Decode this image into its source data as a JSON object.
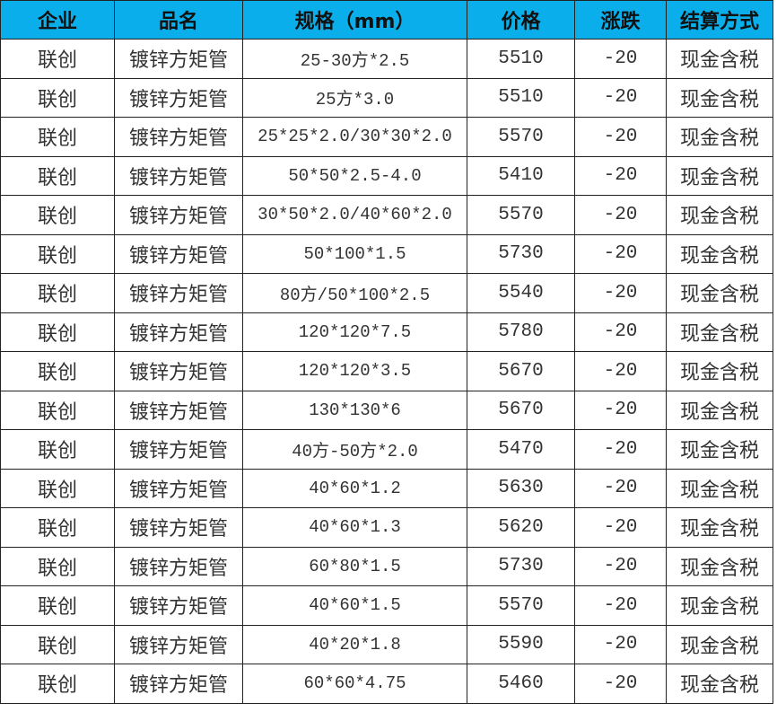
{
  "colors": {
    "header_bg": "#0aaeea",
    "border": "#222222"
  },
  "headers": [
    "企业",
    "品名",
    "规格（mm）",
    "价格",
    "涨跌",
    "结算方式"
  ],
  "rows": [
    [
      "联创",
      "镀锌方矩管",
      "25-30方*2.5",
      "5510",
      "-20",
      "现金含税"
    ],
    [
      "联创",
      "镀锌方矩管",
      "25方*3.0",
      "5510",
      "-20",
      "现金含税"
    ],
    [
      "联创",
      "镀锌方矩管",
      "25*25*2.0/30*30*2.0",
      "5570",
      "-20",
      "现金含税"
    ],
    [
      "联创",
      "镀锌方矩管",
      "50*50*2.5-4.0",
      "5410",
      "-20",
      "现金含税"
    ],
    [
      "联创",
      "镀锌方矩管",
      "30*50*2.0/40*60*2.0",
      "5570",
      "-20",
      "现金含税"
    ],
    [
      "联创",
      "镀锌方矩管",
      "50*100*1.5",
      "5730",
      "-20",
      "现金含税"
    ],
    [
      "联创",
      "镀锌方矩管",
      "80方/50*100*2.5",
      "5540",
      "-20",
      "现金含税"
    ],
    [
      "联创",
      "镀锌方矩管",
      "120*120*7.5",
      "5780",
      "-20",
      "现金含税"
    ],
    [
      "联创",
      "镀锌方矩管",
      "120*120*3.5",
      "5670",
      "-20",
      "现金含税"
    ],
    [
      "联创",
      "镀锌方矩管",
      "130*130*6",
      "5670",
      "-20",
      "现金含税"
    ],
    [
      "联创",
      "镀锌方矩管",
      "40方-50方*2.0",
      "5470",
      "-20",
      "现金含税"
    ],
    [
      "联创",
      "镀锌方矩管",
      "40*60*1.2",
      "5630",
      "-20",
      "现金含税"
    ],
    [
      "联创",
      "镀锌方矩管",
      "40*60*1.3",
      "5620",
      "-20",
      "现金含税"
    ],
    [
      "联创",
      "镀锌方矩管",
      "60*80*1.5",
      "5730",
      "-20",
      "现金含税"
    ],
    [
      "联创",
      "镀锌方矩管",
      "40*60*1.5",
      "5570",
      "-20",
      "现金含税"
    ],
    [
      "联创",
      "镀锌方矩管",
      "40*20*1.8",
      "5590",
      "-20",
      "现金含税"
    ],
    [
      "联创",
      "镀锌方矩管",
      "60*60*4.75",
      "5460",
      "-20",
      "现金含税"
    ]
  ]
}
